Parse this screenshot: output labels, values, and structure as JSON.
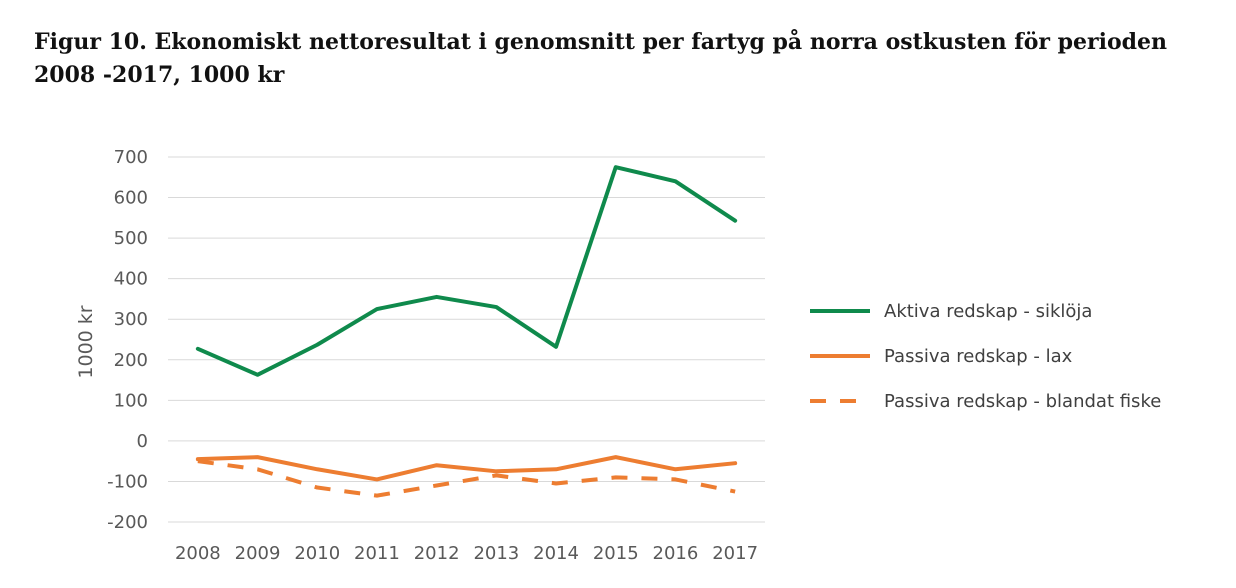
{
  "page": {
    "title": "Figur 10. Ekonomiskt nettoresultat i genomsnitt per fartyg på norra ostkusten för perioden 2008 -2017, 1000 kr"
  },
  "chart_data": {
    "type": "line",
    "title": "Figur 10. Ekonomiskt nettoresultat i genomsnitt per fartyg på norra ostkusten för perioden 2008 -2017, 1000 kr",
    "xlabel": "",
    "ylabel": "1000 kr",
    "categories": [
      "2008",
      "2009",
      "2010",
      "2011",
      "2012",
      "2013",
      "2014",
      "2015",
      "2016",
      "2017"
    ],
    "ylim": [
      -200,
      700
    ],
    "yticks": [
      700,
      600,
      500,
      400,
      300,
      200,
      100,
      0,
      -100,
      -200
    ],
    "grid": true,
    "legend_position": "right",
    "series": [
      {
        "name": "Aktiva redskap - siklöja",
        "color": "#0f8a4c",
        "dash": "solid",
        "values": [
          227,
          163,
          237,
          325,
          355,
          330,
          232,
          675,
          640,
          543
        ]
      },
      {
        "name": "Passiva redskap - lax",
        "color": "#ed7d31",
        "dash": "solid",
        "values": [
          -45,
          -40,
          -70,
          -95,
          -60,
          -75,
          -70,
          -40,
          -70,
          -55
        ]
      },
      {
        "name": "Passiva redskap - blandat fiske",
        "color": "#ed7d31",
        "dash": "dashed",
        "values": [
          -50,
          -70,
          -115,
          -135,
          -110,
          -85,
          -105,
          -90,
          -95,
          -125
        ]
      }
    ]
  }
}
